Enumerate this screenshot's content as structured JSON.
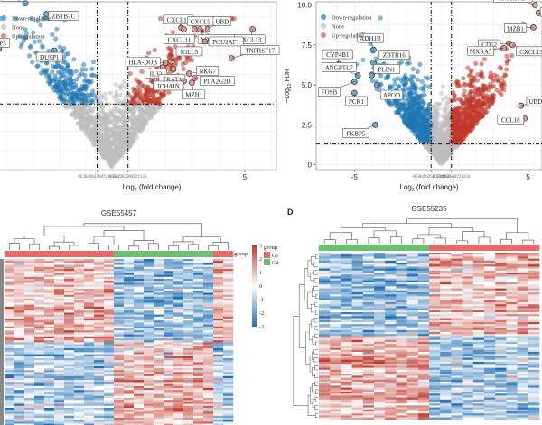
{
  "chart_data": [
    {
      "type": "scatter",
      "subtype": "volcano",
      "panel_label": "",
      "title": "",
      "xlabel": "Log2 (fold change)",
      "ylabel": "",
      "x_ticks": [
        "-0.584962500721156",
        "0.584962500721156",
        "5"
      ],
      "x_tick_values": [
        -0.585,
        0.585,
        5
      ],
      "xlim": [
        -4.6,
        6.2
      ],
      "ylim": [
        0,
        11
      ],
      "thresholds": {
        "logfc": 0.585,
        "neglog_fdr": 4.3
      },
      "legend": {
        "placement": "top-left",
        "entries": [
          {
            "label": "Down-regulation",
            "color": "#5ba5d6"
          },
          {
            "label": "None",
            "color": "#cfcfcf"
          },
          {
            "label": "Up-regulation",
            "color": "#e28a7e"
          }
        ]
      },
      "colors": {
        "down": "#1f77b4",
        "none": "#bdbdbd",
        "up": "#c0392b"
      },
      "labeled_genes": [
        {
          "gene": "GSN",
          "x": -3.3,
          "y": 10.9,
          "dir": "down"
        },
        {
          "gene": "ZBTB7C",
          "x": -2.5,
          "y": 10.2,
          "dir": "down"
        },
        {
          "gene": "FKBP5",
          "x": -4.3,
          "y": 7.9,
          "dir": "down"
        },
        {
          "gene": "DUSP1",
          "x": -2.2,
          "y": 7.8,
          "dir": "down"
        },
        {
          "gene": "CXCL10",
          "x": 2.6,
          "y": 9.3,
          "dir": "up"
        },
        {
          "gene": "CXCL11",
          "x": 2.7,
          "y": 9.2,
          "dir": "up"
        },
        {
          "gene": "CXCL9",
          "x": 3.1,
          "y": 9.2,
          "dir": "up"
        },
        {
          "gene": "ADAMDEC1",
          "x": 3.3,
          "y": 9.2,
          "dir": "up"
        },
        {
          "gene": "UBD",
          "x": 3.6,
          "y": 9.2,
          "dir": "up"
        },
        {
          "gene": "CXCL13",
          "x": 5.3,
          "y": 9.2,
          "dir": "up"
        },
        {
          "gene": "POU2AF1",
          "x": 3.5,
          "y": 8.4,
          "dir": "up"
        },
        {
          "gene": "TNFRSF17",
          "x": 4.5,
          "y": 7.3,
          "dir": "up"
        },
        {
          "gene": "HLA-DOB",
          "x": 2.0,
          "y": 7.0,
          "dir": "up"
        },
        {
          "gene": "IGLL5",
          "x": 2.2,
          "y": 7.1,
          "dir": "up"
        },
        {
          "gene": "IL32",
          "x": 1.9,
          "y": 6.7,
          "dir": "up"
        },
        {
          "gene": "TRAT1",
          "x": 2.3,
          "y": 6.6,
          "dir": "up"
        },
        {
          "gene": "NKG7",
          "x": 2.9,
          "y": 6.3,
          "dir": "up"
        },
        {
          "gene": "PLA2G2D",
          "x": 3.1,
          "y": 6.0,
          "dir": "up"
        },
        {
          "gene": "JCHAIN",
          "x": 2.7,
          "y": 5.8,
          "dir": "up"
        },
        {
          "gene": "MZB1",
          "x": 3.0,
          "y": 5.7,
          "dir": "up"
        }
      ]
    },
    {
      "type": "scatter",
      "subtype": "volcano",
      "panel_label": "",
      "title": "",
      "xlabel": "Log2 (fold change)",
      "ylabel": "-Log10 FDR",
      "x_ticks": [
        "-5",
        "-0.584962500721156",
        "0.584962500721156",
        "5"
      ],
      "x_tick_values": [
        -5,
        -0.585,
        0.585,
        5
      ],
      "y_ticks": [
        "0",
        "2.5",
        "5.0",
        "7.5",
        "10.0"
      ],
      "y_tick_values": [
        0,
        2.5,
        5.0,
        7.5,
        10.0
      ],
      "xlim": [
        -7.2,
        5.8
      ],
      "ylim": [
        -0.3,
        10.2
      ],
      "thresholds": {
        "logfc": 0.585,
        "neglog_fdr": 1.3
      },
      "legend": {
        "placement": "top-left",
        "entries": [
          {
            "label": "Down-regulation",
            "color": "#5ba5d6"
          },
          {
            "label": "None",
            "color": "#cfcfcf"
          },
          {
            "label": "Up-regulation",
            "color": "#e28a7e"
          }
        ]
      },
      "colors": {
        "down": "#1f77b4",
        "none": "#bdbdbd",
        "up": "#c0392b"
      },
      "labeled_genes": [
        {
          "gene": "CYP4B1",
          "x": -5.9,
          "y": 6.3,
          "dir": "down"
        },
        {
          "gene": "ADH1B",
          "x": -3.9,
          "y": 7.2,
          "dir": "down"
        },
        {
          "gene": "ZBTB16",
          "x": -3.9,
          "y": 6.4,
          "dir": "down"
        },
        {
          "gene": "ANGPTL7",
          "x": -4.8,
          "y": 5.6,
          "dir": "down"
        },
        {
          "gene": "PLIN1",
          "x": -4.0,
          "y": 5.6,
          "dir": "down"
        },
        {
          "gene": "FOSB",
          "x": -5.0,
          "y": 5.2,
          "dir": "down"
        },
        {
          "gene": "APOD",
          "x": -3.7,
          "y": 5.0,
          "dir": "down"
        },
        {
          "gene": "PCK1",
          "x": -5.0,
          "y": 4.5,
          "dir": "down"
        },
        {
          "gene": "FKBP5",
          "x": -3.8,
          "y": 2.5,
          "dir": "down"
        },
        {
          "gene": "TNFRSF17",
          "x": 5.4,
          "y": 10.0,
          "dir": "up"
        },
        {
          "gene": "NKG7",
          "x": 5.6,
          "y": 9.5,
          "dir": "up"
        },
        {
          "gene": "MZB1",
          "x": 5.3,
          "y": 8.6,
          "dir": "up"
        },
        {
          "gene": "CD52",
          "x": 3.9,
          "y": 7.6,
          "dir": "up"
        },
        {
          "gene": "CXCL13",
          "x": 4.1,
          "y": 7.5,
          "dir": "up"
        },
        {
          "gene": "MXRA5",
          "x": 3.6,
          "y": 7.3,
          "dir": "up"
        },
        {
          "gene": "UBD",
          "x": 4.6,
          "y": 3.7,
          "dir": "up"
        },
        {
          "gene": "CCL18",
          "x": 4.8,
          "y": 2.9,
          "dir": "up"
        }
      ]
    },
    {
      "type": "heatmap",
      "panel_label": "",
      "title": "GSE55457",
      "legend_title": "group",
      "group_legend": [
        {
          "label": "G1",
          "color": "#e8696a"
        },
        {
          "label": "G2",
          "color": "#6cc070"
        }
      ],
      "annotation_label": "group",
      "colorbar_ticks": [
        "3",
        "2",
        "1",
        "0",
        "-1",
        "-2",
        "-3"
      ],
      "color_range": [
        -3,
        3
      ],
      "colors": {
        "low": "#1f6fb4",
        "mid": "#ffffff",
        "high": "#c0392b"
      },
      "columns_groups": [
        "G1",
        "G1",
        "G1",
        "G1",
        "G1",
        "G1",
        "G1",
        "G1",
        "G1",
        "G1",
        "G1",
        "G2",
        "G2",
        "G2",
        "G2",
        "G2",
        "G2",
        "G2",
        "G2",
        "G2",
        "G2",
        "G1",
        "G1"
      ],
      "row_blocks": [
        {
          "rows": 42,
          "G1_level": 1.0,
          "G2_level": -1.2
        },
        {
          "rows": 42,
          "G1_level": -1.0,
          "G2_level": 1.0
        }
      ]
    },
    {
      "type": "heatmap",
      "panel_label": "D",
      "title": "GSE55235",
      "colors": {
        "low": "#1f6fb4",
        "mid": "#ffffff",
        "high": "#c0392b"
      },
      "columns_groups": [
        "G2",
        "G2",
        "G2",
        "G2",
        "G2",
        "G2",
        "G2",
        "G2",
        "G2",
        "G2",
        "G1",
        "G1",
        "G1",
        "G1",
        "G1",
        "G1",
        "G1",
        "G1",
        "G1",
        "G1"
      ],
      "row_blocks": [
        {
          "rows": 42,
          "G2_level": -1.2,
          "G1_level": 1.1
        },
        {
          "rows": 42,
          "G2_level": 1.1,
          "G1_level": -1.1
        }
      ]
    }
  ]
}
